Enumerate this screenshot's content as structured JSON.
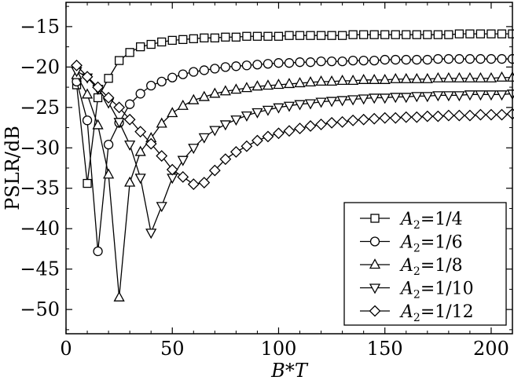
{
  "chart_data": {
    "type": "line",
    "xlabel_parts": [
      "B",
      "*",
      "T"
    ],
    "ylabel": "PSLR/dB",
    "xlim": [
      0,
      210
    ],
    "ylim": [
      -53,
      -12
    ],
    "x_ticks": [
      0,
      50,
      100,
      150,
      200
    ],
    "y_ticks": [
      -15,
      -20,
      -25,
      -30,
      -35,
      -40,
      -45,
      -50
    ],
    "x_tick_labels": [
      "0",
      "50",
      "100",
      "150",
      "200"
    ],
    "y_tick_labels": [
      "−15",
      "−20",
      "−25",
      "−30",
      "−35",
      "−40",
      "−45",
      "−50"
    ],
    "grid": false,
    "legend_position": "lower-right",
    "series": [
      {
        "name_prefix": "A",
        "name_sub": "2",
        "name_suffix": "=1/4",
        "marker": "square",
        "x": [
          5,
          10,
          15,
          20,
          25,
          30,
          35,
          40,
          45,
          50,
          55,
          60,
          65,
          70,
          75,
          80,
          85,
          90,
          95,
          100,
          105,
          110,
          115,
          120,
          125,
          130,
          135,
          140,
          145,
          150,
          155,
          160,
          165,
          170,
          175,
          180,
          185,
          190,
          195,
          200,
          205,
          210
        ],
        "values": [
          -22.2,
          -34.4,
          -23.8,
          -21.4,
          -19.2,
          -18.2,
          -17.5,
          -17.2,
          -16.9,
          -16.7,
          -16.6,
          -16.5,
          -16.4,
          -16.4,
          -16.3,
          -16.3,
          -16.2,
          -16.2,
          -16.2,
          -16.2,
          -16.1,
          -16.1,
          -16.1,
          -16.1,
          -16.1,
          -16.1,
          -16.0,
          -16.0,
          -16.0,
          -16.0,
          -16.0,
          -16.0,
          -16.0,
          -16.0,
          -16.0,
          -16.0,
          -15.9,
          -15.9,
          -15.9,
          -15.9,
          -15.9,
          -15.9
        ]
      },
      {
        "name_prefix": "A",
        "name_sub": "2",
        "name_suffix": "=1/6",
        "marker": "circle",
        "x": [
          5,
          10,
          15,
          20,
          25,
          30,
          35,
          40,
          45,
          50,
          55,
          60,
          65,
          70,
          75,
          80,
          85,
          90,
          95,
          100,
          105,
          110,
          115,
          120,
          125,
          130,
          135,
          140,
          145,
          150,
          155,
          160,
          165,
          170,
          175,
          180,
          185,
          190,
          195,
          200,
          205,
          210
        ],
        "values": [
          -21.8,
          -26.6,
          -42.8,
          -29.6,
          -26.9,
          -24.6,
          -23.3,
          -22.3,
          -21.8,
          -21.3,
          -20.9,
          -20.6,
          -20.4,
          -20.2,
          -20.0,
          -19.9,
          -19.8,
          -19.7,
          -19.6,
          -19.5,
          -19.5,
          -19.4,
          -19.4,
          -19.3,
          -19.3,
          -19.3,
          -19.2,
          -19.2,
          -19.2,
          -19.1,
          -19.1,
          -19.1,
          -19.1,
          -19.1,
          -19.0,
          -19.0,
          -19.0,
          -19.0,
          -19.0,
          -19.0,
          -19.0,
          -19.0
        ]
      },
      {
        "name_prefix": "A",
        "name_sub": "2",
        "name_suffix": "=1/8",
        "marker": "triangle-up",
        "x": [
          5,
          10,
          15,
          20,
          25,
          30,
          35,
          40,
          45,
          50,
          55,
          60,
          65,
          70,
          75,
          80,
          85,
          90,
          95,
          100,
          105,
          110,
          115,
          120,
          125,
          130,
          135,
          140,
          145,
          150,
          155,
          160,
          165,
          170,
          175,
          180,
          185,
          190,
          195,
          200,
          205,
          210
        ],
        "values": [
          -21.0,
          -23.4,
          -27.2,
          -33.3,
          -48.5,
          -34.3,
          -30.5,
          -28.8,
          -27.0,
          -25.7,
          -24.8,
          -24.1,
          -23.7,
          -23.3,
          -23.0,
          -22.8,
          -22.6,
          -22.4,
          -22.3,
          -22.2,
          -22.1,
          -22.0,
          -21.9,
          -21.8,
          -21.8,
          -21.7,
          -21.7,
          -21.6,
          -21.6,
          -21.6,
          -21.5,
          -21.5,
          -21.5,
          -21.5,
          -21.4,
          -21.4,
          -21.4,
          -21.4,
          -21.4,
          -21.4,
          -21.3,
          -21.3
        ]
      },
      {
        "name_prefix": "A",
        "name_sub": "2",
        "name_suffix": "=1/10",
        "marker": "triangle-down",
        "x": [
          5,
          10,
          15,
          20,
          25,
          30,
          35,
          40,
          45,
          50,
          55,
          60,
          65,
          70,
          75,
          80,
          85,
          90,
          95,
          100,
          105,
          110,
          115,
          120,
          125,
          130,
          135,
          140,
          145,
          150,
          155,
          160,
          165,
          170,
          175,
          180,
          185,
          190,
          195,
          200,
          205,
          210
        ],
        "values": [
          -20.5,
          -21.3,
          -22.7,
          -24.4,
          -26.8,
          -29.6,
          -33.7,
          -40.5,
          -37.2,
          -33.7,
          -31.5,
          -30.0,
          -28.7,
          -27.8,
          -27.1,
          -26.5,
          -26.0,
          -25.6,
          -25.3,
          -25.0,
          -24.8,
          -24.6,
          -24.5,
          -24.3,
          -24.2,
          -24.1,
          -24.0,
          -23.9,
          -23.8,
          -23.8,
          -23.7,
          -23.7,
          -23.6,
          -23.6,
          -23.5,
          -23.5,
          -23.5,
          -23.4,
          -23.4,
          -23.4,
          -23.4,
          -23.3
        ]
      },
      {
        "name_prefix": "A",
        "name_sub": "2",
        "name_suffix": "=1/12",
        "marker": "diamond",
        "x": [
          5,
          10,
          15,
          20,
          25,
          30,
          35,
          40,
          45,
          50,
          55,
          60,
          65,
          70,
          75,
          80,
          85,
          90,
          95,
          100,
          105,
          110,
          115,
          120,
          125,
          130,
          135,
          140,
          145,
          150,
          155,
          160,
          165,
          170,
          175,
          180,
          185,
          190,
          195,
          200,
          205,
          210
        ],
        "values": [
          -19.8,
          -21.2,
          -22.5,
          -23.8,
          -25.0,
          -26.5,
          -28.0,
          -29.5,
          -31.0,
          -32.7,
          -33.6,
          -34.5,
          -34.3,
          -32.8,
          -31.4,
          -30.5,
          -29.8,
          -29.1,
          -28.6,
          -28.2,
          -27.9,
          -27.6,
          -27.3,
          -27.1,
          -26.9,
          -26.8,
          -26.6,
          -26.5,
          -26.4,
          -26.3,
          -26.3,
          -26.2,
          -26.2,
          -26.1,
          -26.1,
          -26.0,
          -26.0,
          -26.0,
          -25.9,
          -25.9,
          -25.9,
          -25.8
        ]
      }
    ]
  }
}
